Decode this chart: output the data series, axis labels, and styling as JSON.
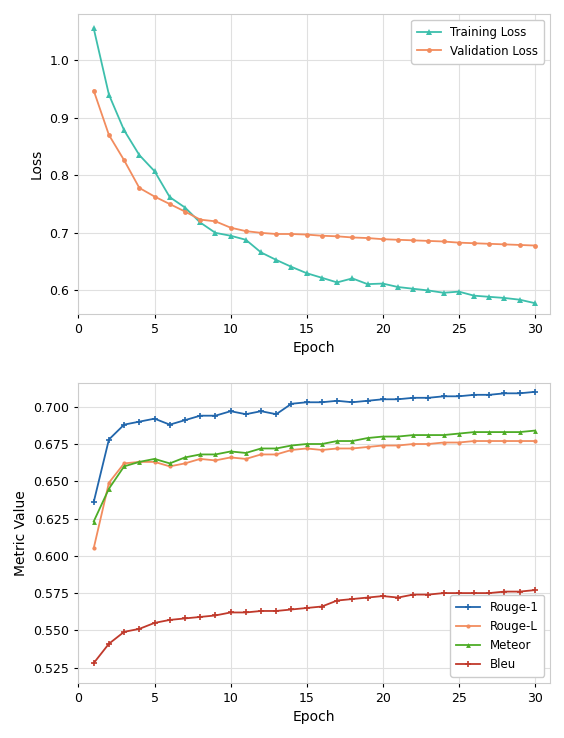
{
  "epochs": [
    1,
    2,
    3,
    4,
    5,
    6,
    7,
    8,
    9,
    10,
    11,
    12,
    13,
    14,
    15,
    16,
    17,
    18,
    19,
    20,
    21,
    22,
    23,
    24,
    25,
    26,
    27,
    28,
    29,
    30
  ],
  "train_loss": [
    1.055,
    0.94,
    0.878,
    0.835,
    0.807,
    0.762,
    0.744,
    0.718,
    0.7,
    0.695,
    0.688,
    0.666,
    0.653,
    0.641,
    0.63,
    0.622,
    0.614,
    0.621,
    0.611,
    0.612,
    0.606,
    0.603,
    0.6,
    0.596,
    0.598,
    0.591,
    0.589,
    0.587,
    0.584,
    0.578
  ],
  "val_loss": [
    0.947,
    0.87,
    0.826,
    0.778,
    0.763,
    0.75,
    0.737,
    0.723,
    0.72,
    0.709,
    0.703,
    0.7,
    0.698,
    0.698,
    0.697,
    0.695,
    0.694,
    0.692,
    0.691,
    0.689,
    0.688,
    0.687,
    0.686,
    0.685,
    0.683,
    0.682,
    0.681,
    0.68,
    0.679,
    0.678
  ],
  "rouge1": [
    0.636,
    0.678,
    0.688,
    0.69,
    0.692,
    0.688,
    0.691,
    0.694,
    0.694,
    0.697,
    0.695,
    0.697,
    0.695,
    0.702,
    0.703,
    0.703,
    0.704,
    0.703,
    0.704,
    0.705,
    0.705,
    0.706,
    0.706,
    0.707,
    0.707,
    0.708,
    0.708,
    0.709,
    0.709,
    0.71
  ],
  "rougel": [
    0.605,
    0.649,
    0.662,
    0.663,
    0.663,
    0.66,
    0.662,
    0.665,
    0.664,
    0.666,
    0.665,
    0.668,
    0.668,
    0.671,
    0.672,
    0.671,
    0.672,
    0.672,
    0.673,
    0.674,
    0.674,
    0.675,
    0.675,
    0.676,
    0.676,
    0.677,
    0.677,
    0.677,
    0.677,
    0.677
  ],
  "meteor": [
    0.623,
    0.645,
    0.66,
    0.663,
    0.665,
    0.662,
    0.666,
    0.668,
    0.668,
    0.67,
    0.669,
    0.672,
    0.672,
    0.674,
    0.675,
    0.675,
    0.677,
    0.677,
    0.679,
    0.68,
    0.68,
    0.681,
    0.681,
    0.681,
    0.682,
    0.683,
    0.683,
    0.683,
    0.683,
    0.684
  ],
  "bleu": [
    0.528,
    0.541,
    0.549,
    0.551,
    0.555,
    0.557,
    0.558,
    0.559,
    0.56,
    0.562,
    0.562,
    0.563,
    0.563,
    0.564,
    0.565,
    0.566,
    0.57,
    0.571,
    0.572,
    0.573,
    0.572,
    0.574,
    0.574,
    0.575,
    0.575,
    0.575,
    0.575,
    0.576,
    0.576,
    0.577
  ],
  "train_color": "#3dbfac",
  "val_color": "#f28c5e",
  "rouge1_color": "#2166ac",
  "rougel_color": "#f28c5e",
  "meteor_color": "#4dac26",
  "bleu_color": "#c0392b",
  "bg_color": "#ffffff",
  "plot_bg_color": "#ffffff",
  "grid_color": "#e0e0e0",
  "loss_ylim": [
    0.56,
    1.08
  ],
  "metric_ylim": [
    0.515,
    0.716
  ],
  "loss_yticks": [
    0.6,
    0.7,
    0.8,
    0.9,
    1.0
  ],
  "metric_yticks": [
    0.525,
    0.55,
    0.575,
    0.6,
    0.625,
    0.65,
    0.675,
    0.7
  ],
  "xlim": [
    0,
    31
  ],
  "xticks": [
    0,
    5,
    10,
    15,
    20,
    25,
    30
  ]
}
